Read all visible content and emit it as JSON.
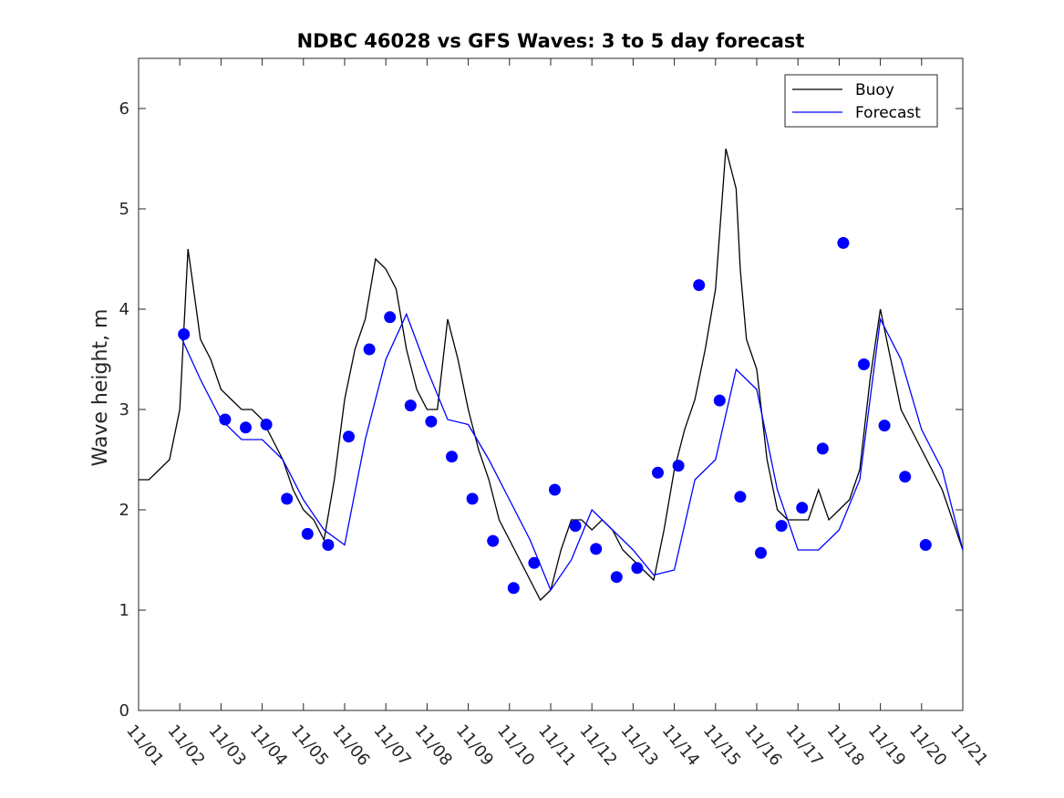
{
  "chart_data": {
    "type": "line",
    "title": "NDBC 46028 vs GFS Waves: 3 to 5 day forecast",
    "xlabel": "",
    "ylabel": "Wave height, m",
    "xlim": [
      0,
      20
    ],
    "ylim": [
      0,
      6.5
    ],
    "xticks": [
      0,
      1,
      2,
      3,
      4,
      5,
      6,
      7,
      8,
      9,
      10,
      11,
      12,
      13,
      14,
      15,
      16,
      17,
      18,
      19,
      20
    ],
    "xtick_labels": [
      "11/01",
      "11/02",
      "11/03",
      "11/04",
      "11/05",
      "11/06",
      "11/07",
      "11/08",
      "11/09",
      "11/10",
      "11/11",
      "11/12",
      "11/13",
      "11/14",
      "11/15",
      "11/16",
      "11/17",
      "11/18",
      "11/19",
      "11/20",
      "11/21"
    ],
    "yticks": [
      0,
      1,
      2,
      3,
      4,
      5,
      6
    ],
    "ytick_labels": [
      "0",
      "1",
      "2",
      "3",
      "4",
      "5",
      "6"
    ],
    "legend": {
      "location": "top-right",
      "entries": [
        "Buoy",
        "Forecast"
      ]
    },
    "colors": {
      "buoy": "#000000",
      "forecast": "#0000ff"
    },
    "series": [
      {
        "name": "Buoy",
        "color": "#000000",
        "x": [
          0,
          0.25,
          0.5,
          0.75,
          1.0,
          1.1,
          1.2,
          1.3,
          1.4,
          1.5,
          1.75,
          2.0,
          2.25,
          2.5,
          2.75,
          3.0,
          3.25,
          3.5,
          3.75,
          4.0,
          4.25,
          4.5,
          4.75,
          5.0,
          5.25,
          5.5,
          5.75,
          6.0,
          6.25,
          6.5,
          6.75,
          7.0,
          7.25,
          7.5,
          7.75,
          8.0,
          8.25,
          8.5,
          8.75,
          9.0,
          9.25,
          9.5,
          9.75,
          10.0,
          10.25,
          10.5,
          10.75,
          11.0,
          11.25,
          11.5,
          11.75,
          12.0,
          12.25,
          12.5,
          12.75,
          13.0,
          13.25,
          13.5,
          13.75,
          14.0,
          14.25,
          14.5,
          14.6,
          14.75,
          15.0,
          15.25,
          15.5,
          15.75,
          16.0,
          16.25,
          16.5,
          16.75,
          17.0,
          17.25,
          17.5,
          17.75,
          18.0,
          18.25,
          18.5,
          18.75,
          19.0,
          19.25,
          19.5,
          19.75,
          20.0
        ],
        "values": [
          2.3,
          2.3,
          2.4,
          2.5,
          3.0,
          3.8,
          4.6,
          4.3,
          4.0,
          3.7,
          3.5,
          3.2,
          3.1,
          3.0,
          3.0,
          2.9,
          2.7,
          2.5,
          2.2,
          2.0,
          1.9,
          1.7,
          2.3,
          3.1,
          3.6,
          3.9,
          4.5,
          4.4,
          4.2,
          3.6,
          3.2,
          3.0,
          3.0,
          3.9,
          3.5,
          3.0,
          2.6,
          2.3,
          1.9,
          1.7,
          1.5,
          1.3,
          1.1,
          1.2,
          1.6,
          1.9,
          1.9,
          1.8,
          1.9,
          1.8,
          1.6,
          1.5,
          1.4,
          1.3,
          1.8,
          2.4,
          2.8,
          3.1,
          3.6,
          4.2,
          5.6,
          5.2,
          4.4,
          3.7,
          3.4,
          2.5,
          2.0,
          1.9,
          1.9,
          1.9,
          2.2,
          1.9,
          2.0,
          2.1,
          2.4,
          3.3,
          4.0,
          3.5,
          3.0,
          2.8,
          2.6,
          2.4,
          2.2,
          1.9,
          1.6
        ]
      },
      {
        "name": "Forecast",
        "color": "#0000ff",
        "x": [
          1.0,
          1.5,
          2.0,
          2.5,
          3.0,
          3.5,
          4.0,
          4.5,
          5.0,
          5.5,
          6.0,
          6.5,
          7.0,
          7.5,
          8.0,
          8.5,
          9.0,
          9.5,
          10.0,
          10.5,
          11.0,
          11.5,
          12.0,
          12.5,
          13.0,
          13.5,
          14.0,
          14.5,
          15.0,
          15.5,
          16.0,
          16.5,
          17.0,
          17.5,
          18.0,
          18.5,
          19.0,
          19.5,
          20.0
        ],
        "values": [
          3.75,
          3.3,
          2.9,
          2.7,
          2.7,
          2.5,
          2.1,
          1.8,
          1.65,
          2.7,
          3.5,
          3.95,
          3.4,
          2.9,
          2.85,
          2.5,
          2.1,
          1.7,
          1.2,
          1.5,
          2.0,
          1.8,
          1.6,
          1.35,
          1.4,
          2.3,
          2.5,
          3.4,
          3.2,
          2.2,
          1.6,
          1.6,
          1.8,
          2.3,
          3.9,
          3.5,
          2.8,
          2.4,
          1.6
        ]
      },
      {
        "name": "Forecast markers",
        "color": "#0000ff",
        "x": [
          1.1,
          2.1,
          2.6,
          3.1,
          3.6,
          4.1,
          4.6,
          5.1,
          5.6,
          6.1,
          6.6,
          7.1,
          7.6,
          8.1,
          8.6,
          9.1,
          9.6,
          10.1,
          10.6,
          11.1,
          11.6,
          12.1,
          12.6,
          13.1,
          13.6,
          14.1,
          14.6,
          15.1,
          15.6,
          16.1,
          16.6,
          17.1,
          17.6,
          18.1,
          18.6,
          19.1
        ],
        "values": [
          3.75,
          2.9,
          2.82,
          2.85,
          2.11,
          1.76,
          1.65,
          2.73,
          3.6,
          3.92,
          3.04,
          2.88,
          2.53,
          2.11,
          1.69,
          1.22,
          1.47,
          2.2,
          1.84,
          1.61,
          1.33,
          1.42,
          2.37,
          2.44,
          4.24,
          3.09,
          2.13,
          1.57,
          1.84,
          2.02,
          2.61,
          4.66,
          3.45,
          2.84,
          2.33,
          1.65
        ]
      }
    ]
  }
}
